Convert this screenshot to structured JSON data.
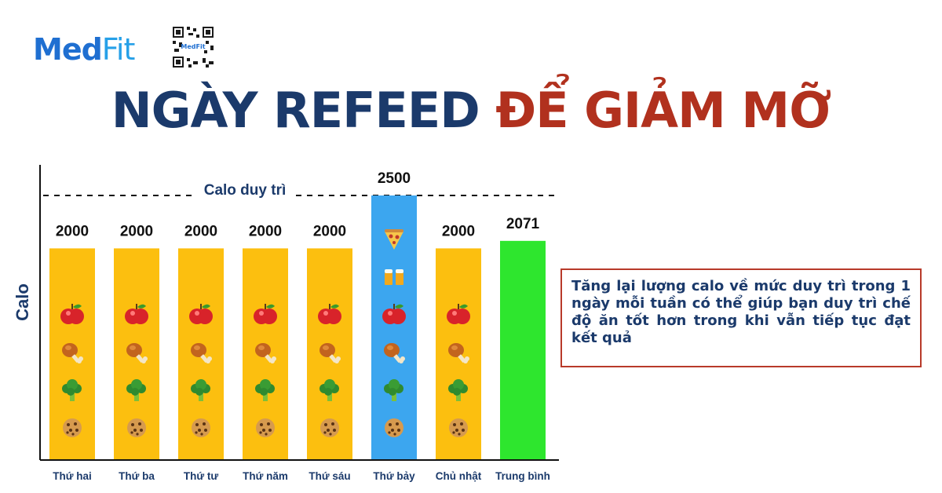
{
  "brand": {
    "name_part1": "Med",
    "name_part2": "Fit",
    "qr_caption": "MedFit"
  },
  "title": {
    "part1": "NGÀY REFEED",
    "part2": "ĐỂ GIẢM MỠ"
  },
  "note": "Tăng lại lượng calo về mức duy trì trong 1 ngày mỗi tuần có thể giúp bạn duy trì chế độ ăn tốt hơn trong khi vẫn tiếp tục đạt kết quả",
  "colors": {
    "navy": "#1b3a6b",
    "red": "#b1311e",
    "bar_regular": "#fcbf0f",
    "bar_refeed": "#3ca6ef",
    "bar_average": "#2ee62e"
  },
  "chart_data": {
    "type": "bar",
    "ylabel": "Calo",
    "xlabel": "",
    "categories": [
      "Thứ hai",
      "Thứ ba",
      "Thứ tư",
      "Thứ năm",
      "Thứ sáu",
      "Thứ bảy",
      "Chủ nhật",
      "Trung bình"
    ],
    "values": [
      2000,
      2000,
      2000,
      2000,
      2000,
      2500,
      2000,
      2071
    ],
    "data_labels": [
      "2000",
      "2000",
      "2000",
      "2000",
      "2000",
      "2500",
      "2000",
      "2071"
    ],
    "bar_colors": [
      "#fcbf0f",
      "#fcbf0f",
      "#fcbf0f",
      "#fcbf0f",
      "#fcbf0f",
      "#3ca6ef",
      "#fcbf0f",
      "#2ee62e"
    ],
    "ylim": [
      0,
      2500
    ],
    "reference_line": {
      "value": 2500,
      "label": "Calo duy trì",
      "style": "dashed"
    },
    "bar_icons": [
      [
        "apple-icon",
        "drumstick-icon",
        "broccoli-icon",
        "cookie-icon"
      ],
      [
        "apple-icon",
        "drumstick-icon",
        "broccoli-icon",
        "cookie-icon"
      ],
      [
        "apple-icon",
        "drumstick-icon",
        "broccoli-icon",
        "cookie-icon"
      ],
      [
        "apple-icon",
        "drumstick-icon",
        "broccoli-icon",
        "cookie-icon"
      ],
      [
        "apple-icon",
        "drumstick-icon",
        "broccoli-icon",
        "cookie-icon"
      ],
      [
        "pizza-icon",
        "beer-icon",
        "apple-icon",
        "drumstick-icon",
        "broccoli-icon",
        "cookie-icon"
      ],
      [
        "apple-icon",
        "drumstick-icon",
        "broccoli-icon",
        "cookie-icon"
      ],
      []
    ],
    "grid": false,
    "legend": "none"
  }
}
